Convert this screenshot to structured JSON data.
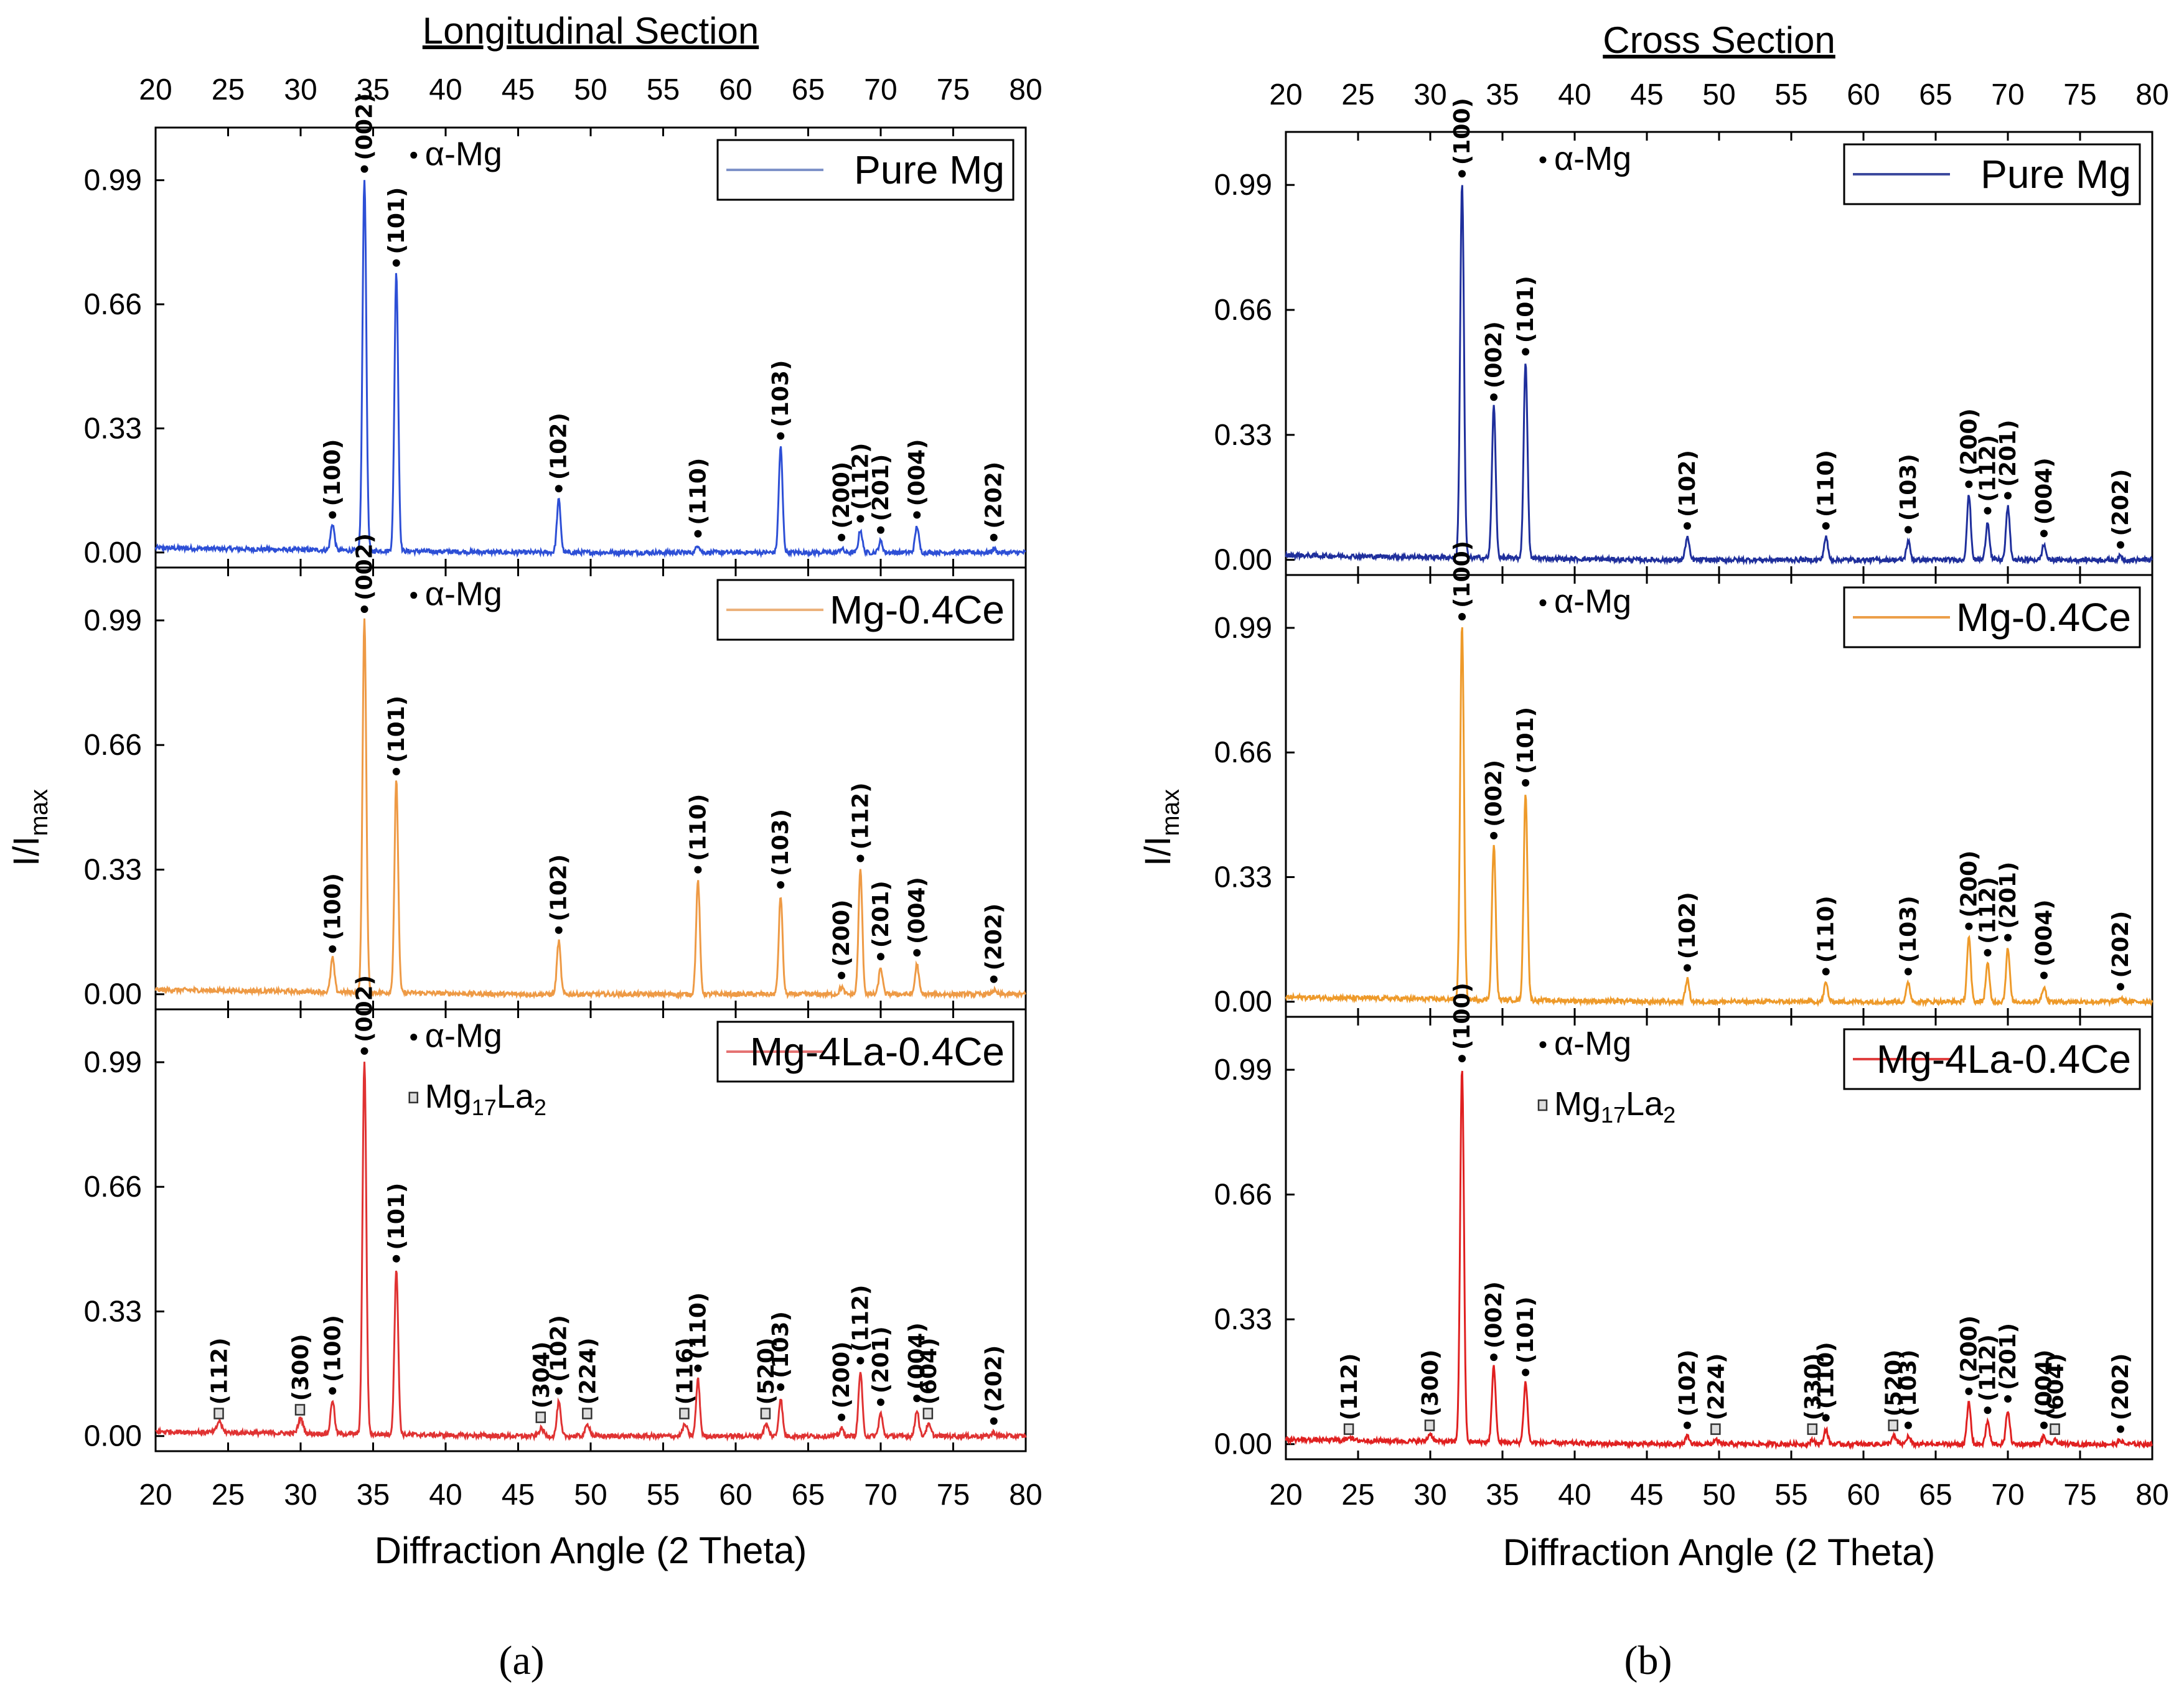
{
  "figure": {
    "ylabel": "I/I",
    "ylabel_sub": "max",
    "yticks": [
      "0.00",
      "0.33",
      "0.66",
      "0.99"
    ],
    "xticks": [
      "20",
      "25",
      "30",
      "35",
      "40",
      "45",
      "50",
      "55",
      "60",
      "65",
      "70",
      "75",
      "80"
    ],
    "alpha_label": "α-Mg",
    "mg17la2_label": "Mg",
    "mg17la2_sub1": "17",
    "mg17la2_mid": "La",
    "mg17la2_sub2": "2"
  },
  "chart_data": [
    {
      "type": "line",
      "panel": "(a)",
      "title": "Longitudinal Section",
      "xlabel": "Diffraction Angle (2 Theta)",
      "ylabel": "I/Imax",
      "xlim": [
        20,
        80
      ],
      "ylim": [
        -0.04,
        1.13
      ],
      "subplots": [
        {
          "name": "Pure Mg",
          "color": "#2d4fd6",
          "legend_color": "#7e92c9",
          "peaks": [
            {
              "x": 32.2,
              "y": 0.07,
              "label": "(100)",
              "phase": "alpha"
            },
            {
              "x": 34.4,
              "y": 0.99,
              "label": "(002)",
              "phase": "alpha"
            },
            {
              "x": 36.6,
              "y": 0.74,
              "label": "(101)",
              "phase": "alpha"
            },
            {
              "x": 47.8,
              "y": 0.14,
              "label": "(102)",
              "phase": "alpha"
            },
            {
              "x": 57.4,
              "y": 0.02,
              "label": "(110)",
              "phase": "alpha"
            },
            {
              "x": 63.1,
              "y": 0.28,
              "label": "(103)",
              "phase": "alpha"
            },
            {
              "x": 67.3,
              "y": 0.01,
              "label": "(200)",
              "phase": "alpha"
            },
            {
              "x": 68.6,
              "y": 0.06,
              "label": "(112)",
              "phase": "alpha"
            },
            {
              "x": 70.0,
              "y": 0.03,
              "label": "(201)",
              "phase": "alpha"
            },
            {
              "x": 72.5,
              "y": 0.07,
              "label": "(004)",
              "phase": "alpha"
            },
            {
              "x": 77.8,
              "y": 0.01,
              "label": "(202)",
              "phase": "alpha"
            }
          ]
        },
        {
          "name": "Mg-0.4Ce",
          "color": "#ee9a45",
          "legend_color": "#ecb27c",
          "peaks": [
            {
              "x": 32.2,
              "y": 0.09,
              "label": "(100)",
              "phase": "alpha"
            },
            {
              "x": 34.4,
              "y": 0.99,
              "label": "(002)",
              "phase": "alpha"
            },
            {
              "x": 36.6,
              "y": 0.56,
              "label": "(101)",
              "phase": "alpha"
            },
            {
              "x": 47.8,
              "y": 0.14,
              "label": "(102)",
              "phase": "alpha"
            },
            {
              "x": 57.4,
              "y": 0.3,
              "label": "(110)",
              "phase": "alpha"
            },
            {
              "x": 63.1,
              "y": 0.26,
              "label": "(103)",
              "phase": "alpha"
            },
            {
              "x": 67.3,
              "y": 0.02,
              "label": "(200)",
              "phase": "alpha"
            },
            {
              "x": 68.6,
              "y": 0.33,
              "label": "(112)",
              "phase": "alpha"
            },
            {
              "x": 70.0,
              "y": 0.07,
              "label": "(201)",
              "phase": "alpha"
            },
            {
              "x": 72.5,
              "y": 0.08,
              "label": "(004)",
              "phase": "alpha"
            },
            {
              "x": 77.8,
              "y": 0.01,
              "label": "(202)",
              "phase": "alpha"
            }
          ]
        },
        {
          "name": "Mg-4La-0.4Ce",
          "color": "#e03232",
          "legend_color": "#e57373",
          "show_mg17la2": true,
          "peaks": [
            {
              "x": 24.4,
              "y": 0.03,
              "label": "(112)",
              "phase": "mg17la2"
            },
            {
              "x": 30.0,
              "y": 0.04,
              "label": "(300)",
              "phase": "mg17la2"
            },
            {
              "x": 32.2,
              "y": 0.09,
              "label": "(100)",
              "phase": "alpha"
            },
            {
              "x": 34.4,
              "y": 0.99,
              "label": "(002)",
              "phase": "alpha"
            },
            {
              "x": 36.6,
              "y": 0.44,
              "label": "(101)",
              "phase": "alpha"
            },
            {
              "x": 46.6,
              "y": 0.02,
              "label": "(304)",
              "phase": "mg17la2"
            },
            {
              "x": 47.8,
              "y": 0.09,
              "label": "(102)",
              "phase": "alpha"
            },
            {
              "x": 49.8,
              "y": 0.03,
              "label": "(224)",
              "phase": "mg17la2"
            },
            {
              "x": 56.5,
              "y": 0.03,
              "label": "(116)",
              "phase": "mg17la2"
            },
            {
              "x": 57.4,
              "y": 0.15,
              "label": "(110)",
              "phase": "alpha"
            },
            {
              "x": 62.1,
              "y": 0.03,
              "label": "(520)",
              "phase": "mg17la2"
            },
            {
              "x": 63.1,
              "y": 0.1,
              "label": "(103)",
              "phase": "alpha"
            },
            {
              "x": 67.3,
              "y": 0.02,
              "label": "(200)",
              "phase": "alpha"
            },
            {
              "x": 68.6,
              "y": 0.17,
              "label": "(112)",
              "phase": "alpha"
            },
            {
              "x": 70.0,
              "y": 0.06,
              "label": "(201)",
              "phase": "alpha"
            },
            {
              "x": 72.5,
              "y": 0.07,
              "label": "(004)",
              "phase": "alpha"
            },
            {
              "x": 73.3,
              "y": 0.03,
              "label": "(604)",
              "phase": "mg17la2"
            },
            {
              "x": 77.8,
              "y": 0.01,
              "label": "(202)",
              "phase": "alpha"
            }
          ]
        }
      ]
    },
    {
      "type": "line",
      "panel": "(b)",
      "title": "Cross Section",
      "xlabel": "Diffraction Angle (2 Theta)",
      "ylabel": "I/Imax",
      "xlim": [
        20,
        80
      ],
      "ylim": [
        -0.04,
        1.13
      ],
      "subplots": [
        {
          "name": "Pure Mg",
          "color": "#1f2f9c",
          "legend_color": "#3d4a9e",
          "peaks": [
            {
              "x": 32.2,
              "y": 0.99,
              "label": "(100)",
              "phase": "alpha"
            },
            {
              "x": 34.4,
              "y": 0.4,
              "label": "(002)",
              "phase": "alpha"
            },
            {
              "x": 36.6,
              "y": 0.52,
              "label": "(101)",
              "phase": "alpha"
            },
            {
              "x": 47.8,
              "y": 0.06,
              "label": "(102)",
              "phase": "alpha"
            },
            {
              "x": 57.4,
              "y": 0.06,
              "label": "(110)",
              "phase": "alpha"
            },
            {
              "x": 63.1,
              "y": 0.05,
              "label": "(103)",
              "phase": "alpha"
            },
            {
              "x": 67.3,
              "y": 0.17,
              "label": "(200)",
              "phase": "alpha"
            },
            {
              "x": 68.6,
              "y": 0.1,
              "label": "(112)",
              "phase": "alpha"
            },
            {
              "x": 70.0,
              "y": 0.14,
              "label": "(201)",
              "phase": "alpha"
            },
            {
              "x": 72.5,
              "y": 0.04,
              "label": "(004)",
              "phase": "alpha"
            },
            {
              "x": 77.8,
              "y": 0.01,
              "label": "(202)",
              "phase": "alpha"
            }
          ]
        },
        {
          "name": "Mg-0.4Ce",
          "color": "#ee9a2a",
          "legend_color": "#ec9f49",
          "peaks": [
            {
              "x": 32.2,
              "y": 0.99,
              "label": "(100)",
              "phase": "alpha"
            },
            {
              "x": 34.4,
              "y": 0.41,
              "label": "(002)",
              "phase": "alpha"
            },
            {
              "x": 36.6,
              "y": 0.55,
              "label": "(101)",
              "phase": "alpha"
            },
            {
              "x": 47.8,
              "y": 0.06,
              "label": "(102)",
              "phase": "alpha"
            },
            {
              "x": 57.4,
              "y": 0.05,
              "label": "(110)",
              "phase": "alpha"
            },
            {
              "x": 63.1,
              "y": 0.05,
              "label": "(103)",
              "phase": "alpha"
            },
            {
              "x": 67.3,
              "y": 0.17,
              "label": "(200)",
              "phase": "alpha"
            },
            {
              "x": 68.6,
              "y": 0.1,
              "label": "(112)",
              "phase": "alpha"
            },
            {
              "x": 70.0,
              "y": 0.14,
              "label": "(201)",
              "phase": "alpha"
            },
            {
              "x": 72.5,
              "y": 0.04,
              "label": "(004)",
              "phase": "alpha"
            },
            {
              "x": 77.8,
              "y": 0.01,
              "label": "(202)",
              "phase": "alpha"
            }
          ]
        },
        {
          "name": "Mg-4La-0.4Ce",
          "color": "#e02020",
          "legend_color": "#e04040",
          "show_mg17la2": true,
          "peaks": [
            {
              "x": 24.4,
              "y": 0.01,
              "label": "(112)",
              "phase": "mg17la2"
            },
            {
              "x": 30.0,
              "y": 0.02,
              "label": "(300)",
              "phase": "mg17la2"
            },
            {
              "x": 32.2,
              "y": 0.99,
              "label": "(100)",
              "phase": "alpha"
            },
            {
              "x": 34.4,
              "y": 0.2,
              "label": "(002)",
              "phase": "alpha"
            },
            {
              "x": 36.6,
              "y": 0.16,
              "label": "(101)",
              "phase": "alpha"
            },
            {
              "x": 47.8,
              "y": 0.02,
              "label": "(102)",
              "phase": "alpha"
            },
            {
              "x": 49.8,
              "y": 0.01,
              "label": "(224)",
              "phase": "mg17la2"
            },
            {
              "x": 56.5,
              "y": 0.01,
              "label": "(330)",
              "phase": "mg17la2"
            },
            {
              "x": 57.4,
              "y": 0.04,
              "label": "(110)",
              "phase": "alpha"
            },
            {
              "x": 62.1,
              "y": 0.02,
              "label": "(520)",
              "phase": "mg17la2"
            },
            {
              "x": 63.1,
              "y": 0.02,
              "label": "(103)",
              "phase": "alpha"
            },
            {
              "x": 67.3,
              "y": 0.11,
              "label": "(200)",
              "phase": "alpha"
            },
            {
              "x": 68.6,
              "y": 0.06,
              "label": "(112)",
              "phase": "alpha"
            },
            {
              "x": 70.0,
              "y": 0.09,
              "label": "(201)",
              "phase": "alpha"
            },
            {
              "x": 72.5,
              "y": 0.02,
              "label": "(004)",
              "phase": "alpha"
            },
            {
              "x": 73.3,
              "y": 0.01,
              "label": "(604)",
              "phase": "mg17la2"
            },
            {
              "x": 77.8,
              "y": 0.01,
              "label": "(202)",
              "phase": "alpha"
            }
          ]
        }
      ]
    }
  ]
}
